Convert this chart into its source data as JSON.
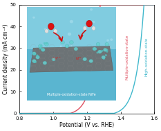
{
  "title": "",
  "xlabel": "Potential (V vs. RHE)",
  "ylabel": "Current density (mA cm⁻²)",
  "xlim": [
    0.8,
    1.6
  ],
  "ylim": [
    0,
    50
  ],
  "xticks": [
    0.8,
    1.0,
    1.2,
    1.4,
    1.6
  ],
  "yticks": [
    0,
    10,
    20,
    30,
    40,
    50
  ],
  "curve1_color": "#e05060",
  "curve2_color": "#40b8cc",
  "curve1_label": "Multiple-oxidation-state",
  "curve2_label": "High-oxidation-state",
  "curve1_onset": 1.1,
  "curve2_onset": 1.36,
  "bg_color": "#ffffff",
  "inset_bg_top": "#6bbdd8",
  "inset_bg_bot": "#3a90b0",
  "sheet_color": "#787878",
  "label_text": "Multiple-oxidation-state NiFe"
}
